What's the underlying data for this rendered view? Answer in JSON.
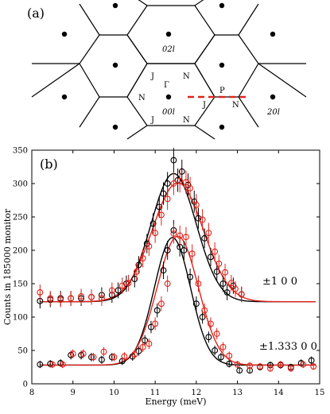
{
  "panel_a": {
    "label": "(a)",
    "points": {
      "gamma": "Γ",
      "n": "N",
      "j": "J",
      "p": "P"
    },
    "reflections": {
      "r02l": "02l",
      "r00l": "00l",
      "r20l": "20l"
    },
    "colors": {
      "lattice": "#000000",
      "dashed_path": "#e0241b"
    }
  },
  "chart_data": {
    "type": "scatter",
    "panel_label": "(b)",
    "xlabel": "Energy (meV)",
    "ylabel": "Counts in 185000 monitor",
    "xlim": [
      8,
      15
    ],
    "ylim": [
      0,
      350
    ],
    "x_ticks": [
      8,
      9,
      10,
      11,
      12,
      13,
      14,
      15
    ],
    "y_ticks": [
      0,
      50,
      100,
      150,
      200,
      250,
      300,
      350
    ],
    "grid": false,
    "annotations": [
      "±1 0 0",
      "±1.333 0 0"
    ],
    "series": [
      {
        "color": "#000000",
        "fit": {
          "baseline": 123,
          "amplitude": 192,
          "center": 11.45,
          "sigma": 0.55
        },
        "points": [
          [
            8.2,
            124
          ],
          [
            8.45,
            126
          ],
          [
            8.7,
            128
          ],
          [
            8.95,
            128
          ],
          [
            9.2,
            128
          ],
          [
            9.45,
            130
          ],
          [
            9.7,
            133
          ],
          [
            9.95,
            133
          ],
          [
            10.1,
            140
          ],
          [
            10.3,
            150
          ],
          [
            10.5,
            157
          ],
          [
            10.6,
            178
          ],
          [
            10.8,
            210
          ],
          [
            10.95,
            240
          ],
          [
            11.1,
            265
          ],
          [
            11.2,
            285
          ],
          [
            11.3,
            300
          ],
          [
            11.45,
            335
          ],
          [
            11.55,
            305
          ],
          [
            11.65,
            318
          ],
          [
            11.8,
            298
          ],
          [
            11.95,
            273
          ],
          [
            12.05,
            248
          ],
          [
            12.2,
            218
          ],
          [
            12.35,
            190
          ],
          [
            12.5,
            168
          ],
          [
            12.65,
            150
          ],
          [
            12.75,
            137
          ],
          [
            12.9,
            147
          ],
          [
            13.1,
            134
          ]
        ]
      },
      {
        "color": "#e0241b",
        "fit": {
          "baseline": 123,
          "amplitude": 178,
          "center": 11.55,
          "sigma": 0.62
        },
        "points": [
          [
            8.2,
            137
          ],
          [
            8.45,
            128
          ],
          [
            8.7,
            126
          ],
          [
            8.95,
            128
          ],
          [
            9.2,
            131
          ],
          [
            9.45,
            130
          ],
          [
            9.7,
            128
          ],
          [
            9.95,
            140
          ],
          [
            10.2,
            147
          ],
          [
            10.35,
            151
          ],
          [
            10.55,
            168
          ],
          [
            10.7,
            188
          ],
          [
            10.85,
            206
          ],
          [
            11.0,
            226
          ],
          [
            11.15,
            253
          ],
          [
            11.3,
            277
          ],
          [
            11.45,
            300
          ],
          [
            11.6,
            304
          ],
          [
            11.75,
            302
          ],
          [
            11.85,
            293
          ],
          [
            12.0,
            268
          ],
          [
            12.15,
            246
          ],
          [
            12.3,
            226
          ],
          [
            12.45,
            198
          ],
          [
            12.55,
            180
          ],
          [
            12.7,
            167
          ],
          [
            12.85,
            151
          ],
          [
            12.95,
            142
          ],
          [
            13.1,
            134
          ]
        ]
      },
      {
        "color": "#000000",
        "fit": {
          "baseline": 28,
          "amplitude": 191,
          "center": 11.42,
          "sigma": 0.44
        },
        "points": [
          [
            8.2,
            29
          ],
          [
            8.45,
            30
          ],
          [
            8.7,
            31
          ],
          [
            8.95,
            43
          ],
          [
            9.2,
            43
          ],
          [
            9.45,
            40
          ],
          [
            9.7,
            36
          ],
          [
            9.95,
            40
          ],
          [
            10.2,
            34
          ],
          [
            10.45,
            41
          ],
          [
            10.6,
            49
          ],
          [
            10.75,
            65
          ],
          [
            10.9,
            85
          ],
          [
            11.05,
            110
          ],
          [
            11.2,
            170
          ],
          [
            11.3,
            200
          ],
          [
            11.45,
            230
          ],
          [
            11.6,
            205
          ],
          [
            11.7,
            200
          ],
          [
            11.85,
            160
          ],
          [
            12.0,
            120
          ],
          [
            12.15,
            100
          ],
          [
            12.3,
            70
          ],
          [
            12.45,
            50
          ],
          [
            12.6,
            40
          ],
          [
            12.8,
            30
          ],
          [
            13.05,
            20
          ],
          [
            13.3,
            20
          ],
          [
            13.55,
            25
          ],
          [
            13.8,
            28
          ],
          [
            14.05,
            28
          ],
          [
            14.3,
            25
          ],
          [
            14.55,
            31
          ],
          [
            14.8,
            35
          ]
        ]
      },
      {
        "color": "#e0241b",
        "fit": {
          "baseline": 28,
          "amplitude": 193,
          "center": 11.55,
          "sigma": 0.5
        },
        "points": [
          [
            8.5,
            29
          ],
          [
            8.75,
            29
          ],
          [
            9.0,
            45
          ],
          [
            9.25,
            45
          ],
          [
            9.5,
            40
          ],
          [
            9.75,
            48
          ],
          [
            10.0,
            40
          ],
          [
            10.25,
            41
          ],
          [
            10.5,
            44
          ],
          [
            10.7,
            55
          ],
          [
            10.85,
            60
          ],
          [
            11.0,
            90
          ],
          [
            11.15,
            120
          ],
          [
            11.3,
            150
          ],
          [
            11.45,
            225
          ],
          [
            11.6,
            222
          ],
          [
            11.75,
            220
          ],
          [
            11.9,
            195
          ],
          [
            12.05,
            150
          ],
          [
            12.2,
            110
          ],
          [
            12.35,
            90
          ],
          [
            12.5,
            75
          ],
          [
            12.65,
            55
          ],
          [
            12.8,
            42
          ],
          [
            13.0,
            29
          ],
          [
            13.3,
            27
          ],
          [
            13.55,
            26
          ],
          [
            13.8,
            23
          ],
          [
            14.05,
            29
          ],
          [
            14.3,
            23
          ],
          [
            14.6,
            29
          ],
          [
            14.85,
            26
          ]
        ]
      }
    ]
  }
}
